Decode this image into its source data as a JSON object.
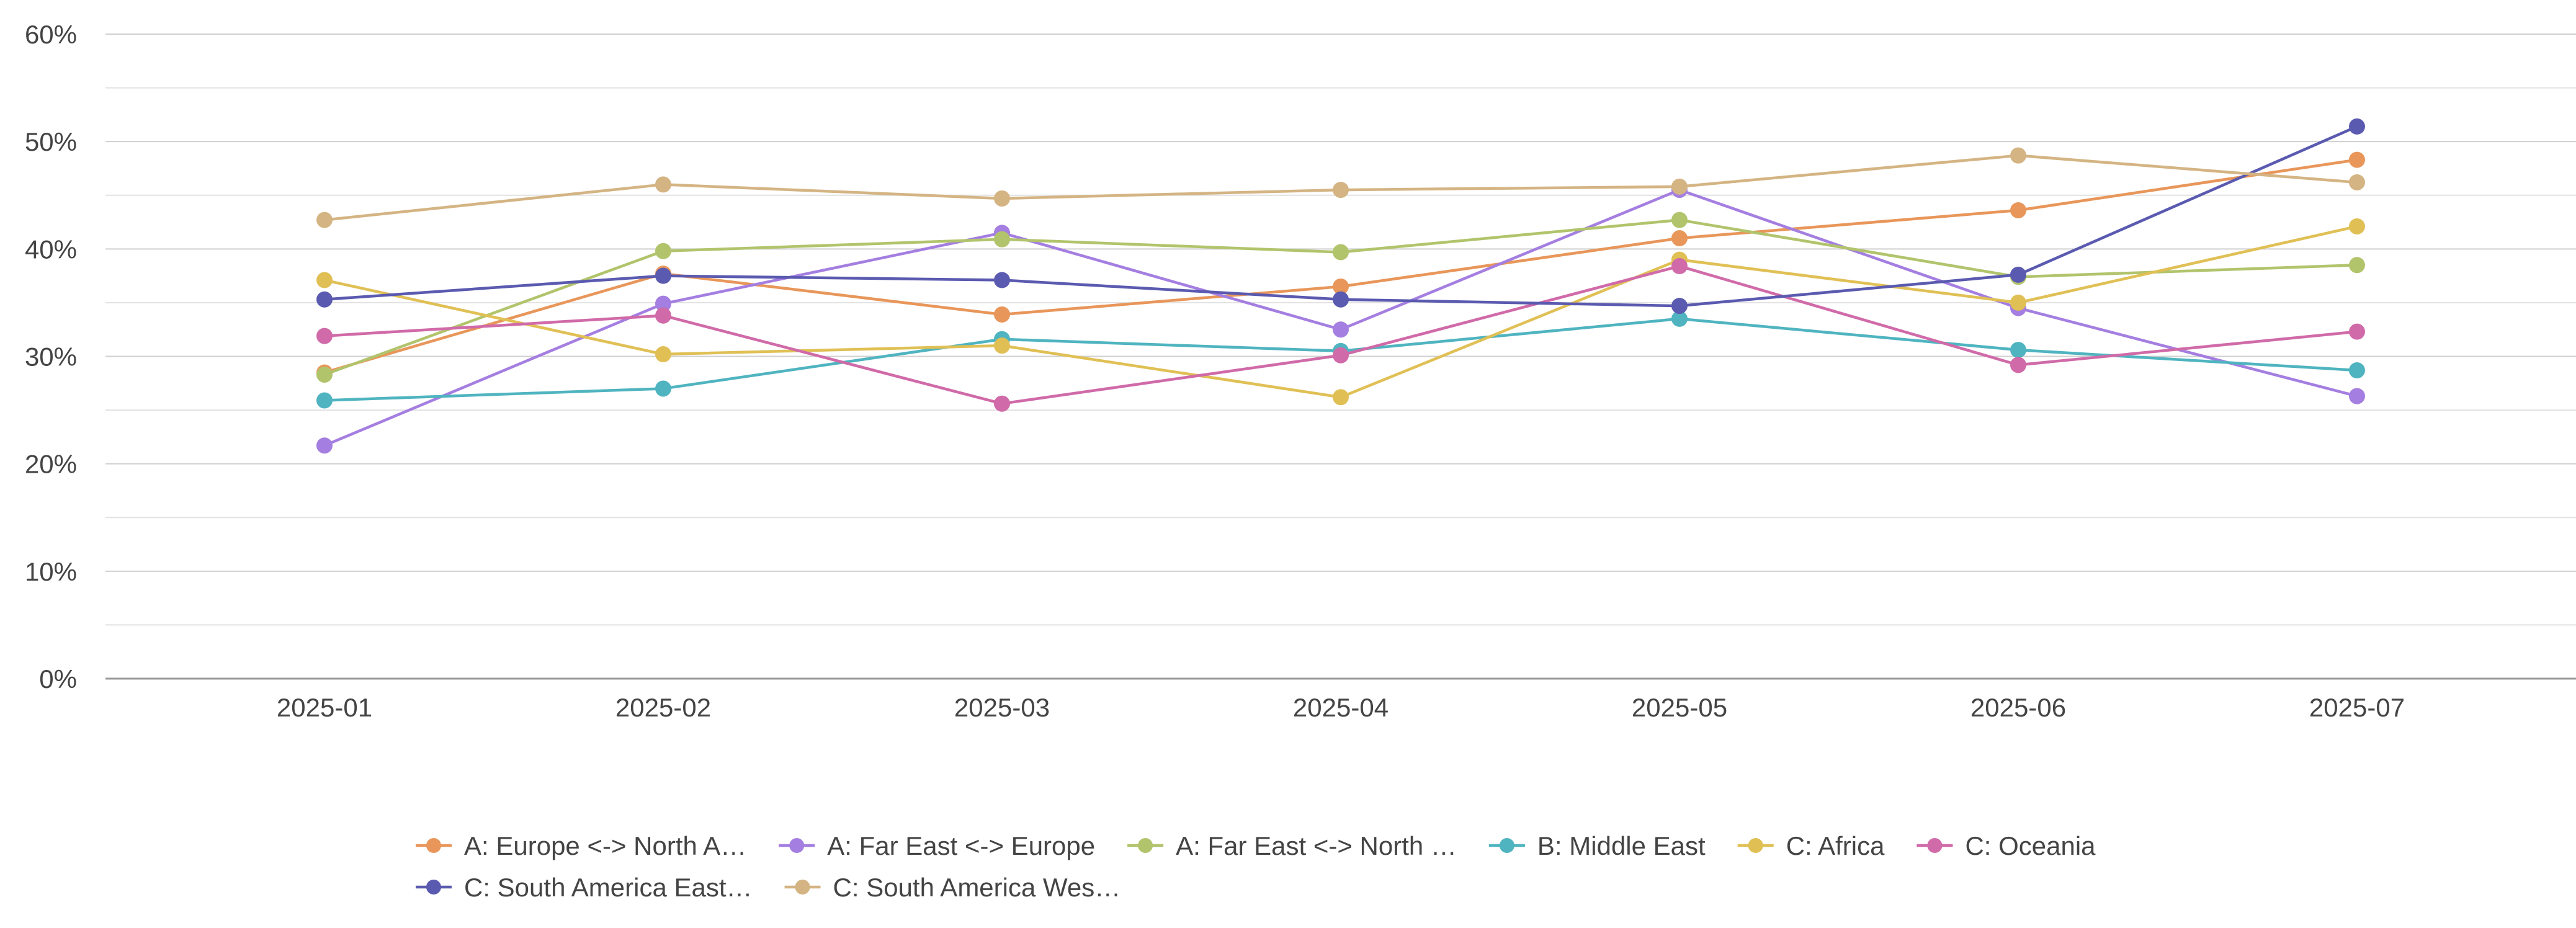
{
  "chart_data": {
    "type": "line",
    "categories": [
      "2025-01",
      "2025-02",
      "2025-03",
      "2025-04",
      "2025-05",
      "2025-06",
      "2025-07"
    ],
    "y_ticks": [
      "0%",
      "10%",
      "20%",
      "30%",
      "40%",
      "50%",
      "60%"
    ],
    "ylim": [
      0,
      60
    ],
    "grid": true,
    "legend_position": "bottom",
    "series": [
      {
        "name": "A: Europe <-> North A…",
        "color": "#e8965a",
        "values": [
          28.5,
          37.7,
          33.9,
          36.5,
          41.0,
          43.6,
          48.3
        ]
      },
      {
        "name": "A: Far East <-> Europe",
        "color": "#a47ee0",
        "values": [
          21.7,
          34.9,
          41.5,
          32.5,
          45.5,
          34.5,
          26.3
        ]
      },
      {
        "name": "A: Far East <-> North …",
        "color": "#b1c46c",
        "values": [
          28.3,
          39.8,
          40.9,
          39.7,
          42.7,
          37.4,
          38.5
        ]
      },
      {
        "name": "B: Middle East",
        "color": "#4fb4c0",
        "values": [
          25.9,
          27.0,
          31.6,
          30.5,
          33.5,
          30.6,
          28.7
        ]
      },
      {
        "name": "C: Africa",
        "color": "#e0c055",
        "values": [
          37.1,
          30.2,
          31.0,
          26.2,
          39.0,
          35.0,
          42.1
        ]
      },
      {
        "name": "C: Oceania",
        "color": "#d06aa8",
        "values": [
          31.9,
          33.8,
          25.6,
          30.1,
          38.4,
          29.2,
          32.3
        ]
      },
      {
        "name": "C: South America East…",
        "color": "#5a5ab0",
        "values": [
          35.3,
          37.5,
          37.1,
          35.3,
          34.7,
          37.6,
          51.4
        ]
      },
      {
        "name": "C: South America Wes…",
        "color": "#d4b483",
        "values": [
          42.7,
          46.0,
          44.7,
          45.5,
          45.8,
          48.7,
          46.2
        ]
      }
    ]
  }
}
